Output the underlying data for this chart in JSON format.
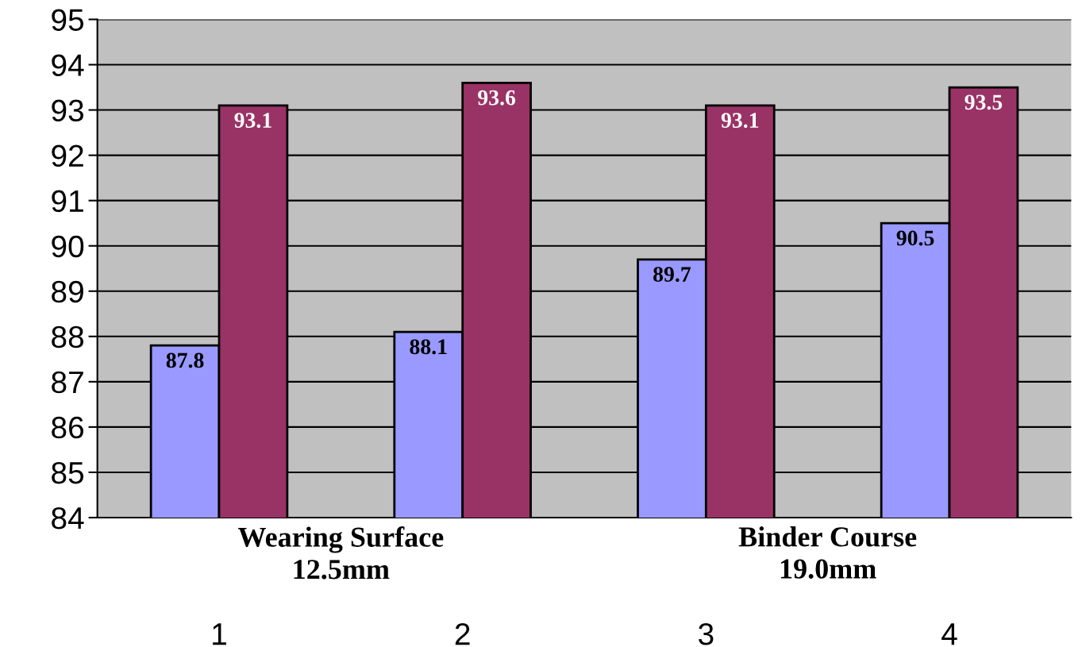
{
  "chart_data": {
    "type": "bar",
    "categories": [
      "1",
      "2",
      "3",
      "4"
    ],
    "series": [
      {
        "color": "#9999ff",
        "values": [
          87.8,
          88.1,
          89.7,
          90.5
        ]
      },
      {
        "color": "#993366",
        "values": [
          93.1,
          93.6,
          93.1,
          93.5
        ]
      }
    ],
    "ylim": [
      84,
      95
    ],
    "yticks": [
      84,
      85,
      86,
      87,
      88,
      89,
      90,
      91,
      92,
      93,
      94,
      95
    ],
    "grid": "y",
    "data_labels": true,
    "annotations": [
      "Wearing Surface\n12.5mm",
      "Binder Course\n19.0mm"
    ]
  }
}
